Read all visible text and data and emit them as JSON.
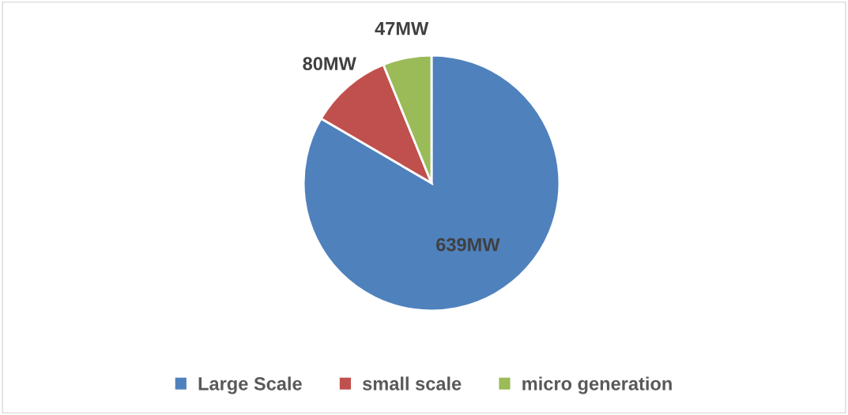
{
  "chart_data": {
    "type": "pie",
    "categories": [
      "Large Scale",
      "small scale",
      "micro generation"
    ],
    "values": [
      639,
      80,
      47
    ],
    "colors": [
      "#4f81bd",
      "#c0504d",
      "#9bbb59"
    ],
    "value_labels": [
      "639MW",
      "80MW",
      "47MW"
    ],
    "legend": "bottom"
  }
}
